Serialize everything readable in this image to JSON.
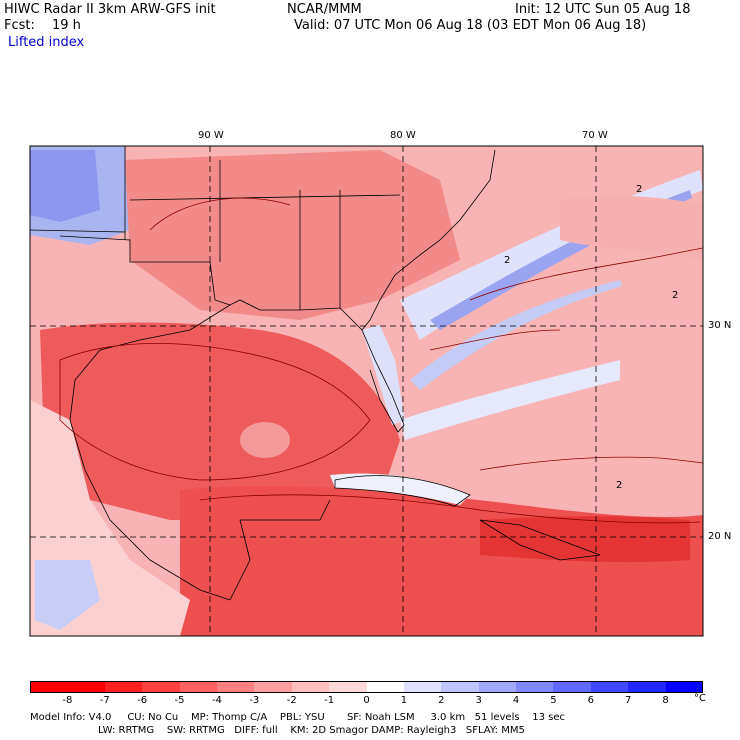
{
  "header": {
    "model": "HIWC Radar II 3km ARW-GFS init",
    "org": "NCAR/MMM",
    "init": "Init: 12 UTC Sun 05 Aug 18",
    "fcst_label": "Fcst:",
    "fcst_value": "19 h",
    "valid": "Valid: 07 UTC Mon 06 Aug 18 (03 EDT Mon 06 Aug 18)",
    "variable": "Lifted index"
  },
  "map": {
    "lon_labels": [
      "90 W",
      "80 W",
      "70 W"
    ],
    "lat_labels": [
      "30 N",
      "20 N"
    ],
    "contour_labels": [
      "2",
      "2",
      "2",
      "2"
    ],
    "fill_colors": {
      "strong_neg": "#e8383a",
      "neg": "#f26a6a",
      "weak_neg": "#f7a0a0",
      "near_zero": "#fbd3d3",
      "pos": "#c7cdf5",
      "strong_pos": "#8d97ee"
    }
  },
  "colorbar": {
    "ticks": [
      "-8",
      "-7",
      "-6",
      "-5",
      "-4",
      "-3",
      "-2",
      "-1",
      "0",
      "1",
      "2",
      "3",
      "4",
      "5",
      "6",
      "7",
      "8"
    ],
    "unit": "°C",
    "colors": [
      "#ff0000",
      "#ff2020",
      "#ff4040",
      "#ff6060",
      "#ff8080",
      "#ffa0a0",
      "#ffbfbf",
      "#ffd9d9",
      "#ffffff",
      "#e0e0ff",
      "#c0c4ff",
      "#a0a8ff",
      "#8088ff",
      "#6068ff",
      "#4048ff",
      "#2028ff",
      "#0000ff"
    ]
  },
  "footer": {
    "line1": "Model Info: V4.0     CU: No Cu    MP: Thomp C/A    PBL: YSU       SF: Noah LSM     3.0 km   51 levels    13 sec",
    "line2": "LW: RRTMG    SW: RRTMG   DIFF: full    KM: 2D Smagor DAMP: Rayleigh3   SFLAY: MM5"
  }
}
